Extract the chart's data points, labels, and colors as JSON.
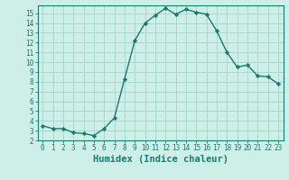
{
  "x": [
    0,
    1,
    2,
    3,
    4,
    5,
    6,
    7,
    8,
    9,
    10,
    11,
    12,
    13,
    14,
    15,
    16,
    17,
    18,
    19,
    20,
    21,
    22,
    23
  ],
  "y": [
    3.5,
    3.2,
    3.2,
    2.8,
    2.7,
    2.5,
    3.2,
    4.3,
    8.3,
    12.2,
    14.0,
    14.8,
    15.5,
    14.9,
    15.4,
    15.1,
    14.9,
    13.2,
    11.0,
    9.5,
    9.7,
    8.6,
    8.5,
    7.8
  ],
  "line_color": "#1a7a6e",
  "marker": "D",
  "marker_size": 2.2,
  "bg_color": "#ceeee8",
  "grid_color": "#a8d8d0",
  "xlabel": "Humidex (Indice chaleur)",
  "xlim": [
    -0.5,
    23.5
  ],
  "ylim": [
    2,
    15.8
  ],
  "yticks": [
    2,
    3,
    4,
    5,
    6,
    7,
    8,
    9,
    10,
    11,
    12,
    13,
    14,
    15
  ],
  "xticks": [
    0,
    1,
    2,
    3,
    4,
    5,
    6,
    7,
    8,
    9,
    10,
    11,
    12,
    13,
    14,
    15,
    16,
    17,
    18,
    19,
    20,
    21,
    22,
    23
  ],
  "tick_label_fontsize": 5.5,
  "xlabel_fontsize": 7.5
}
